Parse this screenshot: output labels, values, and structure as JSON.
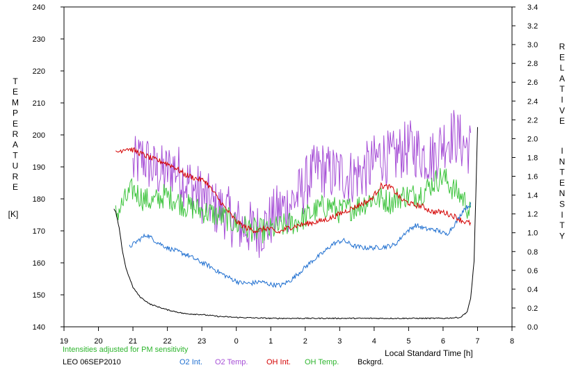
{
  "chart_data": {
    "type": "line",
    "left_axis": {
      "label_letters": [
        "T",
        "E",
        "M",
        "P",
        "E",
        "R",
        "A",
        "T",
        "U",
        "R",
        "E"
      ],
      "unit": "[K]",
      "ylim": [
        140,
        240
      ],
      "ticks": [
        "140",
        "150",
        "160",
        "170",
        "180",
        "190",
        "200",
        "210",
        "220",
        "230",
        "240"
      ]
    },
    "right_axis": {
      "label_word1": [
        "R",
        "E",
        "L",
        "A",
        "T",
        "I",
        "V",
        "E"
      ],
      "label_word2": [
        "I",
        "N",
        "T",
        "E",
        "N",
        "S",
        "I",
        "T",
        "Y"
      ],
      "ylim": [
        0,
        3.4
      ],
      "ticks": [
        "0.0",
        "0.2",
        "0.4",
        "0.6",
        "0.8",
        "1.0",
        "1.2",
        "1.4",
        "1.6",
        "1.8",
        "2.0",
        "2.2",
        "2.4",
        "2.6",
        "2.8",
        "3.0",
        "3.2",
        "3.4"
      ]
    },
    "x_axis": {
      "label": "Local Standard Time [h]",
      "xlim": [
        19,
        32
      ],
      "ticks": [
        "19",
        "20",
        "21",
        "22",
        "23",
        "0",
        "1",
        "2",
        "3",
        "4",
        "5",
        "6",
        "7",
        "8"
      ]
    },
    "note": "Intensities adjusted for PM sensitivity",
    "station": "LEO 06SEP2010",
    "grid": false,
    "series": [
      {
        "name": "O2 Int.",
        "axis": "right",
        "color": "#1f6fd0",
        "x": [
          20.9,
          21.2,
          21.4,
          21.7,
          22.0,
          22.3,
          22.6,
          22.9,
          23.2,
          23.5,
          23.8,
          24.1,
          24.4,
          24.7,
          25.0,
          25.3,
          25.6,
          25.9,
          26.2,
          26.5,
          26.8,
          27.1,
          27.4,
          27.7,
          28.0,
          28.3,
          28.6,
          28.9,
          29.2,
          29.5,
          29.8,
          30.1,
          30.4,
          30.6,
          30.8
        ],
        "y": [
          0.85,
          0.93,
          0.98,
          0.9,
          0.84,
          0.8,
          0.76,
          0.7,
          0.65,
          0.58,
          0.52,
          0.47,
          0.46,
          0.48,
          0.45,
          0.44,
          0.5,
          0.6,
          0.7,
          0.78,
          0.88,
          0.92,
          0.86,
          0.84,
          0.84,
          0.85,
          0.87,
          1.0,
          1.08,
          1.04,
          1.03,
          0.98,
          1.12,
          1.25,
          1.3
        ]
      },
      {
        "name": "O2 Temp.",
        "axis": "left",
        "color": "#a64fd6",
        "x": [
          21.0,
          21.3,
          21.6,
          21.9,
          22.2,
          22.5,
          22.8,
          23.1,
          23.4,
          23.7,
          24.0,
          24.3,
          24.6,
          24.9,
          25.2,
          25.5,
          25.8,
          26.1,
          26.4,
          26.7,
          27.0,
          27.3,
          27.6,
          27.9,
          28.2,
          28.5,
          28.8,
          29.1,
          29.4,
          29.7,
          30.0,
          30.3,
          30.6,
          30.8
        ],
        "y": [
          190,
          193,
          189,
          188,
          190,
          186,
          183,
          180,
          177,
          176,
          172,
          171,
          170,
          172,
          176,
          178,
          181,
          186,
          190,
          188,
          188,
          187,
          188,
          190,
          194,
          192,
          195,
          196,
          194,
          193,
          198,
          200,
          197,
          196
        ]
      },
      {
        "name": "OH Int.",
        "axis": "right",
        "color": "#d40000",
        "x": [
          20.5,
          20.8,
          21.0,
          21.3,
          21.6,
          21.9,
          22.2,
          22.5,
          22.8,
          23.1,
          23.4,
          23.7,
          24.0,
          24.3,
          24.6,
          24.9,
          25.2,
          25.5,
          25.8,
          26.1,
          26.4,
          26.7,
          27.0,
          27.3,
          27.6,
          27.9,
          28.2,
          28.5,
          28.8,
          29.1,
          29.4,
          29.7,
          30.0,
          30.3,
          30.6,
          30.8
        ],
        "y": [
          1.85,
          1.9,
          1.88,
          1.83,
          1.78,
          1.75,
          1.7,
          1.62,
          1.58,
          1.55,
          1.4,
          1.25,
          1.12,
          1.05,
          1.02,
          1.05,
          1.0,
          1.05,
          1.08,
          1.1,
          1.12,
          1.15,
          1.2,
          1.25,
          1.3,
          1.35,
          1.5,
          1.48,
          1.35,
          1.3,
          1.28,
          1.22,
          1.22,
          1.18,
          1.12,
          1.1
        ]
      },
      {
        "name": "OH Temp.",
        "axis": "left",
        "color": "#3ec43e",
        "x": [
          20.5,
          20.8,
          21.0,
          21.3,
          21.6,
          21.9,
          22.2,
          22.5,
          22.8,
          23.1,
          23.4,
          23.7,
          24.0,
          24.3,
          24.6,
          24.9,
          25.2,
          25.5,
          25.8,
          26.1,
          26.4,
          26.7,
          27.0,
          27.3,
          27.6,
          27.9,
          28.2,
          28.5,
          28.8,
          29.1,
          29.4,
          29.7,
          30.0,
          30.3,
          30.6,
          30.8
        ],
        "y": [
          175,
          180,
          183,
          180,
          179,
          181,
          180,
          178,
          177,
          176,
          175,
          174,
          172,
          171,
          170,
          170,
          171,
          172,
          173,
          175,
          177,
          178,
          176,
          177,
          178,
          180,
          180,
          179,
          181,
          181,
          182,
          185,
          187,
          183,
          180,
          175
        ]
      },
      {
        "name": "Bckgrd.",
        "axis": "right",
        "color": "#000000",
        "x": [
          20.45,
          20.5,
          20.6,
          20.7,
          20.8,
          20.9,
          21.0,
          21.2,
          21.5,
          22.0,
          22.5,
          23.0,
          23.5,
          24.0,
          25.0,
          26.0,
          27.0,
          28.0,
          29.0,
          30.0,
          30.5,
          30.7,
          30.8,
          30.9,
          30.95,
          31.0
        ],
        "y": [
          1.25,
          1.22,
          1.05,
          0.8,
          0.62,
          0.52,
          0.42,
          0.32,
          0.24,
          0.18,
          0.14,
          0.13,
          0.11,
          0.1,
          0.09,
          0.09,
          0.09,
          0.09,
          0.09,
          0.09,
          0.1,
          0.16,
          0.3,
          0.7,
          1.4,
          2.12
        ]
      }
    ]
  }
}
